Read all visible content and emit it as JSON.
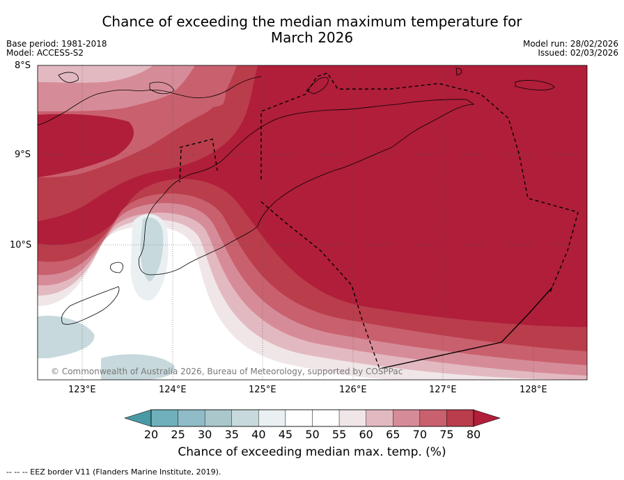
{
  "title_line1": "Chance of exceeding the median maximum temperature for",
  "title_line2": "March 2026",
  "meta_left": {
    "base_period": "Base period: 1981-2018",
    "model": "Model: ACCESS-S2"
  },
  "meta_right": {
    "model_run": "Model run: 28/02/2026",
    "issued": "Issued: 02/03/2026"
  },
  "lat_labels": [
    "8°S",
    "9°S",
    "10°S"
  ],
  "lon_labels": [
    "123°E",
    "124°E",
    "125°E",
    "126°E",
    "127°E",
    "128°E"
  ],
  "copyright": "© Commonwealth of Australia 2026, Bureau of Meteorology, supported by COSPPac",
  "colorbar": {
    "label": "Chance of exceeding median max. temp. (%)",
    "ticks": [
      "20",
      "25",
      "30",
      "35",
      "40",
      "45",
      "50",
      "55",
      "60",
      "65",
      "70",
      "75",
      "80"
    ],
    "colors": [
      "#4a9aa6",
      "#6fb0bc",
      "#8fbcc6",
      "#aac7cc",
      "#c7d9dd",
      "#eaf0f2",
      "#ffffff",
      "#ffffff",
      "#f0e6e8",
      "#e3b9c1",
      "#d68c98",
      "#c9606e",
      "#ba3d4c",
      "#b01e3a"
    ]
  },
  "footer": "--  --  -- EEZ border V11 (Flanders Marine Institute, 2019)."
}
